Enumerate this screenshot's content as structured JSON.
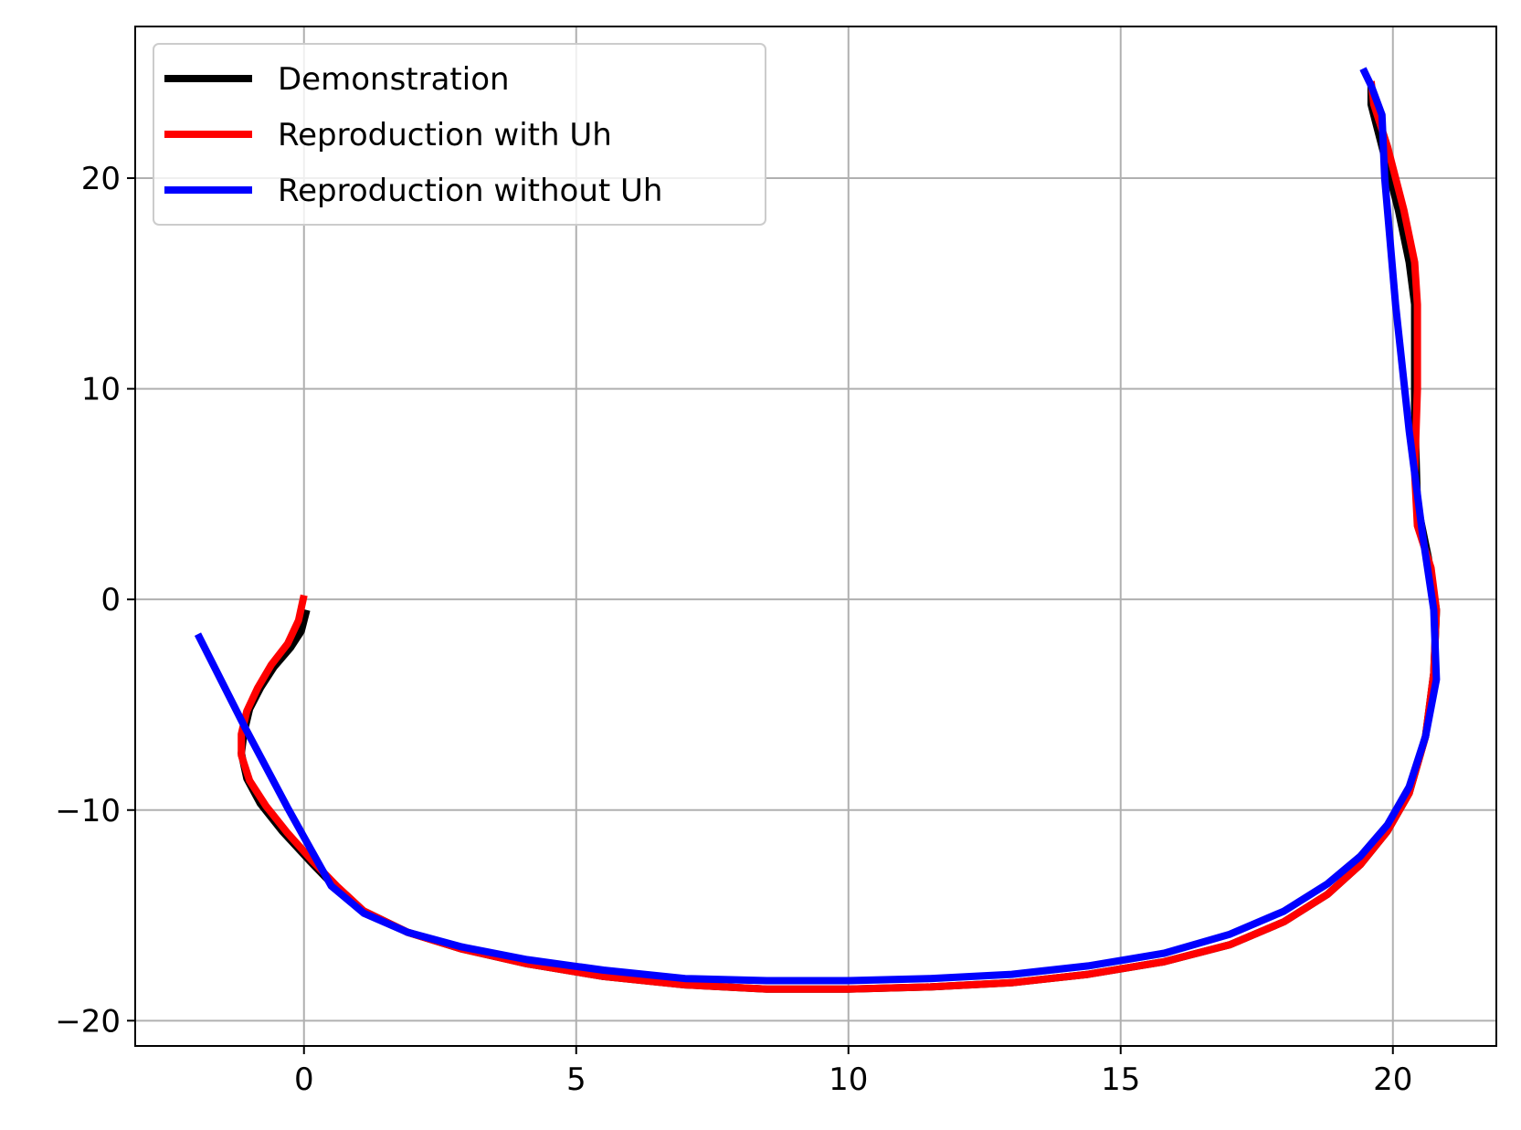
{
  "chart_data": {
    "type": "line",
    "title": "",
    "xlabel": "",
    "ylabel": "",
    "xlim": [
      -3.1,
      21.9
    ],
    "ylim": [
      -21.2,
      27.2
    ],
    "xticks": [
      0,
      5,
      10,
      15,
      20
    ],
    "yticks": [
      -20,
      -10,
      0,
      10,
      20
    ],
    "xtick_labels": [
      "0",
      "5",
      "10",
      "15",
      "20"
    ],
    "ytick_labels": [
      "−20",
      "−10",
      "0",
      "10",
      "20"
    ],
    "grid": true,
    "legend_position": "top-left",
    "series": [
      {
        "name": "Demonstration",
        "color": "#000000",
        "points": [
          [
            0.05,
            -0.5
          ],
          [
            -0.05,
            -1.5
          ],
          [
            -0.25,
            -2.3
          ],
          [
            -0.55,
            -3.2
          ],
          [
            -0.8,
            -4.2
          ],
          [
            -1.0,
            -5.2
          ],
          [
            -1.1,
            -6.3
          ],
          [
            -1.15,
            -7.3
          ],
          [
            -1.05,
            -8.5
          ],
          [
            -0.8,
            -9.7
          ],
          [
            -0.4,
            -11.0
          ],
          [
            0.1,
            -12.4
          ],
          [
            0.55,
            -13.6
          ],
          [
            1.1,
            -14.8
          ],
          [
            1.9,
            -15.8
          ],
          [
            2.9,
            -16.6
          ],
          [
            4.1,
            -17.3
          ],
          [
            5.5,
            -17.9
          ],
          [
            7.0,
            -18.3
          ],
          [
            8.5,
            -18.5
          ],
          [
            10.0,
            -18.5
          ],
          [
            11.5,
            -18.4
          ],
          [
            13.0,
            -18.2
          ],
          [
            14.4,
            -17.8
          ],
          [
            15.8,
            -17.2
          ],
          [
            17.0,
            -16.4
          ],
          [
            18.0,
            -15.3
          ],
          [
            18.8,
            -14.0
          ],
          [
            19.4,
            -12.6
          ],
          [
            19.9,
            -11.0
          ],
          [
            20.3,
            -9.2
          ],
          [
            20.6,
            -6.5
          ],
          [
            20.75,
            -3.5
          ],
          [
            20.8,
            -0.5
          ],
          [
            20.65,
            2.0
          ],
          [
            20.45,
            4.5
          ],
          [
            20.4,
            9.0
          ],
          [
            20.4,
            14.0
          ],
          [
            20.3,
            16.0
          ],
          [
            20.1,
            18.5
          ],
          [
            19.8,
            21.5
          ],
          [
            19.6,
            23.5
          ],
          [
            19.6,
            24.6
          ]
        ]
      },
      {
        "name": "Reproduction with Uh",
        "color": "#ff0000",
        "points": [
          [
            0.0,
            0.2
          ],
          [
            -0.1,
            -1.0
          ],
          [
            -0.3,
            -2.1
          ],
          [
            -0.6,
            -3.1
          ],
          [
            -0.85,
            -4.2
          ],
          [
            -1.05,
            -5.3
          ],
          [
            -1.15,
            -6.4
          ],
          [
            -1.15,
            -7.4
          ],
          [
            -1.0,
            -8.6
          ],
          [
            -0.7,
            -9.8
          ],
          [
            -0.3,
            -11.1
          ],
          [
            0.15,
            -12.4
          ],
          [
            0.6,
            -13.6
          ],
          [
            1.1,
            -14.8
          ],
          [
            1.9,
            -15.8
          ],
          [
            2.9,
            -16.6
          ],
          [
            4.1,
            -17.3
          ],
          [
            5.5,
            -17.9
          ],
          [
            7.0,
            -18.3
          ],
          [
            8.5,
            -18.5
          ],
          [
            10.0,
            -18.5
          ],
          [
            11.5,
            -18.4
          ],
          [
            13.0,
            -18.2
          ],
          [
            14.4,
            -17.8
          ],
          [
            15.8,
            -17.2
          ],
          [
            17.0,
            -16.4
          ],
          [
            18.0,
            -15.3
          ],
          [
            18.8,
            -14.0
          ],
          [
            19.4,
            -12.6
          ],
          [
            19.9,
            -11.0
          ],
          [
            20.3,
            -9.2
          ],
          [
            20.6,
            -6.5
          ],
          [
            20.75,
            -3.5
          ],
          [
            20.8,
            -0.5
          ],
          [
            20.7,
            1.5
          ],
          [
            20.45,
            3.5
          ],
          [
            20.4,
            6.0
          ],
          [
            20.45,
            10.0
          ],
          [
            20.45,
            14.0
          ],
          [
            20.4,
            16.0
          ],
          [
            20.2,
            18.5
          ],
          [
            19.9,
            21.5
          ],
          [
            19.65,
            23.5
          ],
          [
            19.6,
            24.6
          ]
        ]
      },
      {
        "name": "Reproduction without Uh",
        "color": "#0000ff",
        "points": [
          [
            -1.95,
            -1.65
          ],
          [
            -1.1,
            -6.0
          ],
          [
            -0.3,
            -9.9
          ],
          [
            0.5,
            -13.6
          ],
          [
            1.1,
            -14.9
          ],
          [
            1.9,
            -15.8
          ],
          [
            2.9,
            -16.5
          ],
          [
            4.1,
            -17.1
          ],
          [
            5.5,
            -17.6
          ],
          [
            7.0,
            -18.0
          ],
          [
            8.5,
            -18.1
          ],
          [
            10.0,
            -18.1
          ],
          [
            11.5,
            -18.0
          ],
          [
            13.0,
            -17.8
          ],
          [
            14.4,
            -17.4
          ],
          [
            15.8,
            -16.8
          ],
          [
            17.0,
            -15.9
          ],
          [
            18.0,
            -14.8
          ],
          [
            18.8,
            -13.5
          ],
          [
            19.4,
            -12.2
          ],
          [
            19.9,
            -10.7
          ],
          [
            20.3,
            -8.9
          ],
          [
            20.6,
            -6.5
          ],
          [
            20.8,
            -3.8
          ],
          [
            20.75,
            -0.5
          ],
          [
            20.55,
            3.0
          ],
          [
            20.3,
            8.0
          ],
          [
            20.05,
            14.0
          ],
          [
            19.85,
            20.0
          ],
          [
            19.8,
            23.0
          ],
          [
            19.6,
            24.4
          ],
          [
            19.45,
            25.2
          ]
        ]
      }
    ]
  }
}
